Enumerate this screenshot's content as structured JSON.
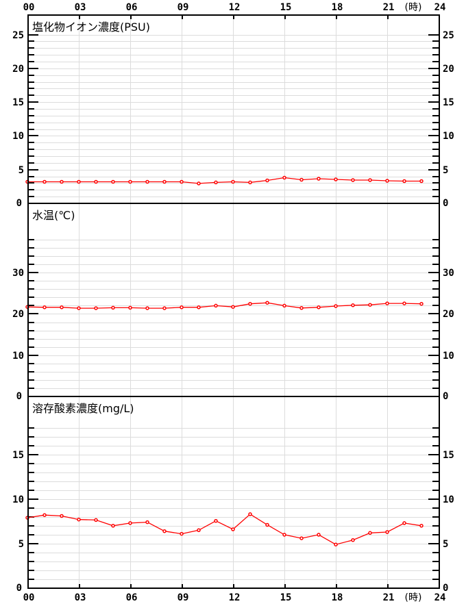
{
  "page": {
    "background": "#ffffff",
    "grid_color": "#dcdcdc",
    "axis_color": "#000000"
  },
  "x_axis": {
    "unit_label": "(時)",
    "tick_labels": [
      "00",
      "03",
      "06",
      "09",
      "12",
      "15",
      "18",
      "21",
      "24"
    ],
    "tick_hours": [
      0,
      3,
      6,
      9,
      12,
      15,
      18,
      21,
      24
    ],
    "range": [
      0,
      24
    ]
  },
  "chart_data": [
    {
      "type": "line",
      "title": "塩化物イオン濃度(PSU)",
      "ylabel_unit": "PSU",
      "ylim": [
        0,
        27.9
      ],
      "y_minor_step": 1,
      "y_label_step": 5,
      "y_tick_max": 25,
      "y_tick_labels": [
        "0",
        "5",
        "10",
        "15",
        "20",
        "25"
      ],
      "series": [
        {
          "name": "塩化物イオン濃度",
          "color": "#ff0000",
          "x": [
            0,
            1,
            2,
            3,
            4,
            5,
            6,
            7,
            8,
            9,
            10,
            11,
            12,
            13,
            14,
            15,
            16,
            17,
            18,
            19,
            20,
            21,
            22,
            23
          ],
          "values": [
            3.2,
            3.2,
            3.2,
            3.2,
            3.2,
            3.2,
            3.2,
            3.2,
            3.2,
            3.2,
            2.95,
            3.1,
            3.2,
            3.1,
            3.4,
            3.8,
            3.5,
            3.65,
            3.55,
            3.45,
            3.45,
            3.35,
            3.3,
            3.3
          ]
        }
      ]
    },
    {
      "type": "line",
      "title": "水温(℃)",
      "ylabel_unit": "℃",
      "ylim": [
        0,
        46.8
      ],
      "y_minor_step": 2,
      "y_label_step": 10,
      "y_tick_max": 38,
      "y_tick_labels": [
        "0",
        "10",
        "20",
        "30"
      ],
      "series": [
        {
          "name": "水温",
          "color": "#ff0000",
          "x": [
            0,
            1,
            2,
            3,
            4,
            5,
            6,
            7,
            8,
            9,
            10,
            11,
            12,
            13,
            14,
            15,
            16,
            17,
            18,
            19,
            20,
            21,
            22,
            23
          ],
          "values": [
            21.7,
            21.6,
            21.6,
            21.4,
            21.4,
            21.5,
            21.5,
            21.4,
            21.4,
            21.6,
            21.6,
            22.0,
            21.7,
            22.45,
            22.7,
            22.0,
            21.45,
            21.6,
            21.9,
            22.1,
            22.2,
            22.55,
            22.55,
            22.45
          ]
        }
      ]
    },
    {
      "type": "line",
      "title": "溶存酸素濃度(mg/L)",
      "ylabel_unit": "mg/L",
      "ylim": [
        0,
        21.5
      ],
      "y_minor_step": 1,
      "y_label_step": 5,
      "y_tick_max": 18,
      "y_tick_labels": [
        "0",
        "5",
        "10",
        "15"
      ],
      "series": [
        {
          "name": "溶存酸素濃度",
          "color": "#ff0000",
          "x": [
            0,
            1,
            2,
            3,
            4,
            5,
            6,
            7,
            8,
            9,
            10,
            11,
            12,
            13,
            14,
            15,
            16,
            17,
            18,
            19,
            20,
            21,
            22,
            23
          ],
          "values": [
            7.9,
            8.2,
            8.1,
            7.7,
            7.65,
            7.0,
            7.3,
            7.4,
            6.4,
            6.1,
            6.5,
            7.55,
            6.6,
            8.3,
            7.1,
            6.0,
            5.6,
            6.0,
            4.9,
            5.4,
            6.2,
            6.3,
            7.3,
            7.0
          ]
        }
      ]
    }
  ]
}
